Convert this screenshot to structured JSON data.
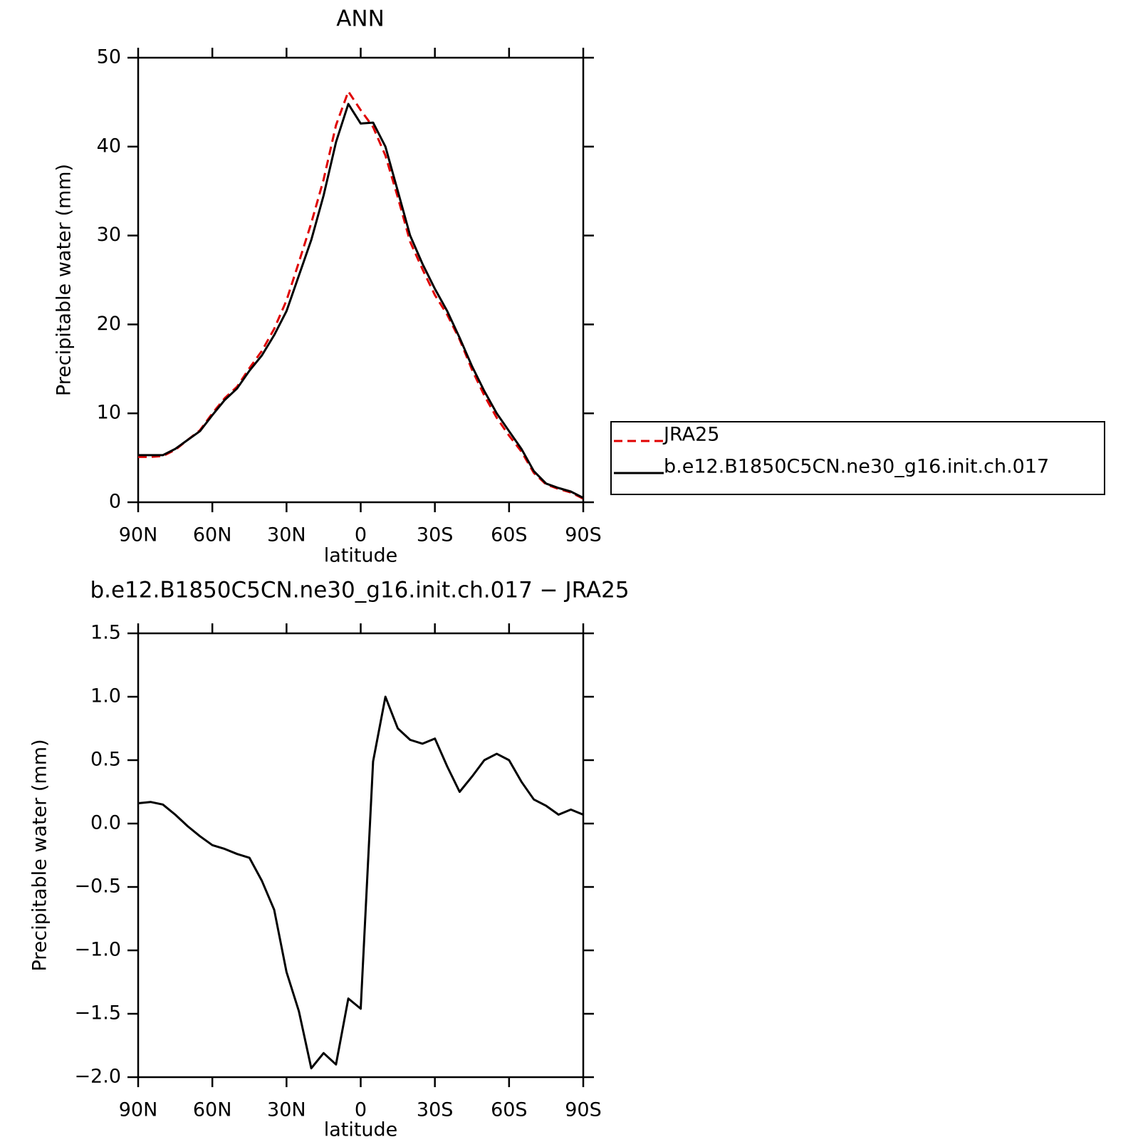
{
  "chart_data": [
    {
      "type": "line",
      "title": "ANN",
      "x_label": "latitude",
      "y_label": "Precipitable water (mm)",
      "x": [
        90,
        85,
        80,
        75,
        70,
        65,
        60,
        55,
        50,
        45,
        40,
        35,
        30,
        25,
        20,
        15,
        10,
        5,
        0,
        -5,
        -10,
        -15,
        -20,
        -25,
        -30,
        -35,
        -40,
        -45,
        -50,
        -55,
        -60,
        -65,
        -70,
        -75,
        -80,
        -85,
        -90
      ],
      "series": [
        {
          "name": "JRA25",
          "color": "#e00000",
          "style": "dashed",
          "values": [
            5.1,
            5.1,
            5.2,
            5.9,
            7.0,
            8.1,
            10.0,
            11.7,
            13.0,
            15.1,
            17.0,
            19.5,
            22.7,
            27.0,
            31.4,
            36.3,
            42.4,
            46.2,
            44.1,
            42.2,
            39.0,
            34.3,
            29.3,
            26.2,
            23.3,
            21.1,
            18.3,
            14.9,
            12.0,
            9.5,
            7.5,
            5.7,
            3.3,
            2.0,
            1.5,
            1.1,
            0.4
          ]
        },
        {
          "name": "b.e12.B1850C5CN.ne30_g16.init.ch.017",
          "color": "#000000",
          "style": "solid",
          "values": [
            5.3,
            5.3,
            5.3,
            6.0,
            7.0,
            8.0,
            9.8,
            11.5,
            12.8,
            14.8,
            16.5,
            18.8,
            21.5,
            25.5,
            29.5,
            34.5,
            40.5,
            44.8,
            42.6,
            42.7,
            40.0,
            35.0,
            30.0,
            26.8,
            24.0,
            21.5,
            18.5,
            15.3,
            12.5,
            10.0,
            8.0,
            6.0,
            3.5,
            2.1,
            1.6,
            1.2,
            0.5
          ]
        }
      ],
      "xlim": [
        90,
        -90
      ],
      "xticks": [
        {
          "value": 90,
          "label": "90N"
        },
        {
          "value": 60,
          "label": "60N"
        },
        {
          "value": 30,
          "label": "30N"
        },
        0,
        {
          "value": -30,
          "label": "30S"
        },
        {
          "value": -60,
          "label": "60S"
        },
        {
          "value": -90,
          "label": "90S"
        }
      ],
      "ylim": [
        0,
        50
      ],
      "yticks": [
        0,
        10,
        20,
        30,
        40,
        50
      ],
      "legend": "right"
    },
    {
      "type": "line",
      "title": "b.e12.B1850C5CN.ne30_g16.init.ch.017 − JRA25",
      "x_label": "latitude",
      "y_label": "Precipitable water (mm)",
      "x": [
        90,
        85,
        80,
        75,
        70,
        65,
        60,
        55,
        50,
        45,
        40,
        35,
        30,
        25,
        20,
        15,
        10,
        5,
        0,
        -5,
        -10,
        -15,
        -20,
        -25,
        -30,
        -35,
        -40,
        -45,
        -50,
        -55,
        -60,
        -65,
        -70,
        -75,
        -80,
        -85,
        -90
      ],
      "values": [
        0.16,
        0.17,
        0.15,
        0.07,
        -0.02,
        -0.1,
        -0.17,
        -0.2,
        -0.24,
        -0.27,
        -0.45,
        -0.68,
        -1.17,
        -1.48,
        -1.93,
        -1.81,
        -1.9,
        -1.38,
        -1.46,
        0.49,
        1.0,
        0.75,
        0.66,
        0.63,
        0.67,
        0.45,
        0.25,
        0.37,
        0.5,
        0.55,
        0.5,
        0.33,
        0.19,
        0.14,
        0.07,
        0.11,
        0.07
      ],
      "color": "#000000",
      "xlim": [
        90,
        -90
      ],
      "xticks": [
        {
          "value": 90,
          "label": "90N"
        },
        {
          "value": 60,
          "label": "60N"
        },
        {
          "value": 30,
          "label": "30N"
        },
        0,
        {
          "value": -30,
          "label": "30S"
        },
        {
          "value": -60,
          "label": "60S"
        },
        {
          "value": -90,
          "label": "90S"
        }
      ],
      "ylim": [
        -2.0,
        1.5
      ],
      "yticks": [
        {
          "value": -2,
          "label": "−2.0"
        },
        {
          "value": -1.5,
          "label": "−1.5"
        },
        {
          "value": -1,
          "label": "−1.0"
        },
        {
          "value": -0.5,
          "label": "−0.5"
        },
        {
          "value": 0,
          "label": "0.0"
        },
        0.5,
        {
          "value": 1,
          "label": "1.0"
        },
        1.5
      ]
    }
  ]
}
